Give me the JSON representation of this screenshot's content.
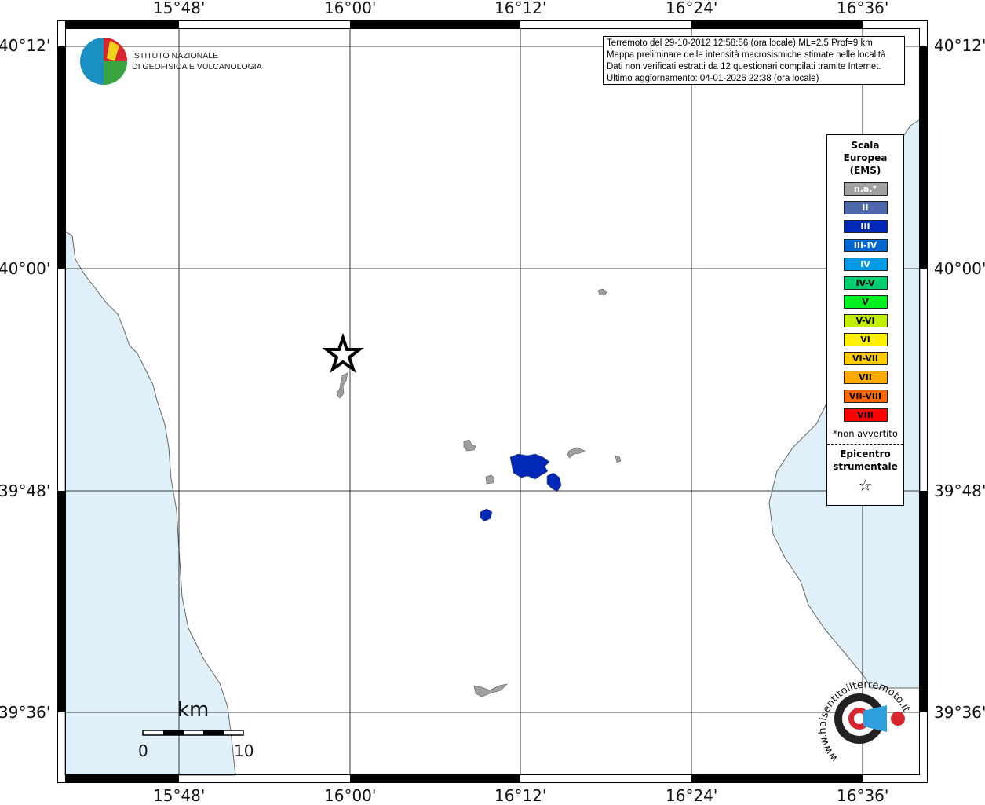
{
  "info": {
    "lines": [
      "Terremoto del 29-10-2012 12:58:56 (ora locale) ML=2.5 Prof=9 km",
      "Mappa preliminare delle intensità macrosismiche stimate nelle località",
      "Dati non verificati estratti da 12 questionari compilati tramite Internet.",
      "Ultimo aggiornamento: 04-01-2026 22:38 (ora locale)"
    ]
  },
  "logo_ingv": {
    "line1": "ISTITUTO NAZIONALE",
    "line2": "DI GEOFISICA E VULCANOLOGIA"
  },
  "logo_hsit": {
    "text": "www.haisentitoilterremoto.it"
  },
  "axes": {
    "longitudes": [
      "15°48'",
      "16°00'",
      "16°12'",
      "16°24'",
      "16°36'"
    ],
    "latitudes": [
      "40°12'",
      "40°00'",
      "39°48'",
      "39°36'"
    ]
  },
  "scale_bar": {
    "unit": "km",
    "min": "0",
    "max": "10"
  },
  "legend": {
    "title": [
      "Scala",
      "Europea",
      "(EMS)"
    ],
    "items": [
      {
        "label": "n.a.*",
        "color": "#a0a0a0",
        "text_color": "#ffffff"
      },
      {
        "label": "II",
        "color": "#4f68ad",
        "text_color": "#ffffff"
      },
      {
        "label": "III",
        "color": "#0028b8",
        "text_color": "#ffffff"
      },
      {
        "label": "III-IV",
        "color": "#0066d0",
        "text_color": "#ffffff"
      },
      {
        "label": "IV",
        "color": "#0099e6",
        "text_color": "#ffffff"
      },
      {
        "label": "IV-V",
        "color": "#00cc70",
        "text_color": "#000000"
      },
      {
        "label": "V",
        "color": "#00f020",
        "text_color": "#000000"
      },
      {
        "label": "V-VI",
        "color": "#c0f000",
        "text_color": "#000000"
      },
      {
        "label": "VI",
        "color": "#fff000",
        "text_color": "#000000"
      },
      {
        "label": "VI-VII",
        "color": "#ffcc00",
        "text_color": "#000000"
      },
      {
        "label": "VII",
        "color": "#ffaa00",
        "text_color": "#000000"
      },
      {
        "label": "VII-VIII",
        "color": "#ff6600",
        "text_color": "#000000"
      },
      {
        "label": "VIII",
        "color": "#ff0000",
        "text_color": "#000000"
      }
    ],
    "note": "*non avvertito",
    "epicenter_label": [
      "Epicentro",
      "strumentale"
    ]
  },
  "colors": {
    "sea": "#dff0fb",
    "coast": "#666666",
    "na": "#a0a0a0",
    "iii": "#0028b8",
    "iii_iv": "#0066d0"
  }
}
